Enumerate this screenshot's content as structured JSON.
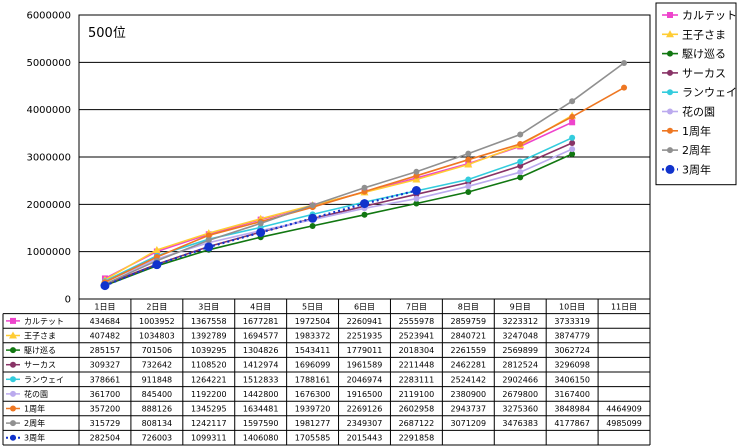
{
  "chart_data": {
    "type": "line",
    "annotation": "500位",
    "y_ticks": [
      "6000000",
      "5000000",
      "4000000",
      "3000000",
      "2000000",
      "1000000",
      "0"
    ],
    "ylim": [
      0,
      6000000
    ],
    "grid": "horizontal",
    "legend_position": "right",
    "categories": [
      "1日目",
      "2日目",
      "3日目",
      "4日目",
      "5日目",
      "6日目",
      "7日目",
      "8日目",
      "9日目",
      "10日目",
      "11日目"
    ],
    "series": [
      {
        "name": "カルテット",
        "color": "#ee44cc",
        "marker": "square",
        "dashed": false,
        "values": [
          434684,
          1003952,
          1367558,
          1677281,
          1972504,
          2260941,
          2555978,
          2859759,
          3223312,
          3733319,
          null
        ]
      },
      {
        "name": "王子さま",
        "color": "#ffcc33",
        "marker": "triangle",
        "dashed": false,
        "values": [
          407482,
          1034803,
          1392789,
          1694577,
          1983372,
          2251935,
          2523941,
          2840721,
          3247048,
          3874779,
          null
        ]
      },
      {
        "name": "駆け巡る",
        "color": "#117711",
        "marker": "circle",
        "dashed": false,
        "values": [
          285157,
          701506,
          1039295,
          1304826,
          1543411,
          1779011,
          2018304,
          2261559,
          2569899,
          3062724,
          null
        ]
      },
      {
        "name": "サーカス",
        "color": "#883366",
        "marker": "circle",
        "dashed": false,
        "values": [
          309327,
          732642,
          1108520,
          1412974,
          1696099,
          1961589,
          2211448,
          2462281,
          2812524,
          3296098,
          null
        ]
      },
      {
        "name": "ランウェイ",
        "color": "#33ccdd",
        "marker": "circle",
        "dashed": false,
        "values": [
          378661,
          911848,
          1264221,
          1512833,
          1788161,
          2046974,
          2283111,
          2524142,
          2902466,
          3406150,
          null
        ]
      },
      {
        "name": "花の園",
        "color": "#bbaaee",
        "marker": "circle",
        "dashed": false,
        "values": [
          361700,
          845400,
          1192200,
          1442800,
          1676300,
          1916500,
          2119100,
          2380900,
          2679800,
          3167400,
          null
        ]
      },
      {
        "name": "1周年",
        "color": "#ee7722",
        "marker": "circle",
        "dashed": false,
        "values": [
          357200,
          888126,
          1345295,
          1634481,
          1939720,
          2269126,
          2602958,
          2943737,
          3275360,
          3848984,
          4464909
        ]
      },
      {
        "name": "2周年",
        "color": "#909090",
        "marker": "circle",
        "dashed": false,
        "values": [
          315729,
          808134,
          1242117,
          1597590,
          1981277,
          2349307,
          2687122,
          3071209,
          3476383,
          4177867,
          4985099
        ]
      },
      {
        "name": "3周年",
        "color": "#1133cc",
        "marker": "bigcircle",
        "dashed": true,
        "values": [
          282504,
          726003,
          1099311,
          1406080,
          1705585,
          2015443,
          2291858,
          null,
          null,
          null,
          null
        ]
      }
    ]
  }
}
